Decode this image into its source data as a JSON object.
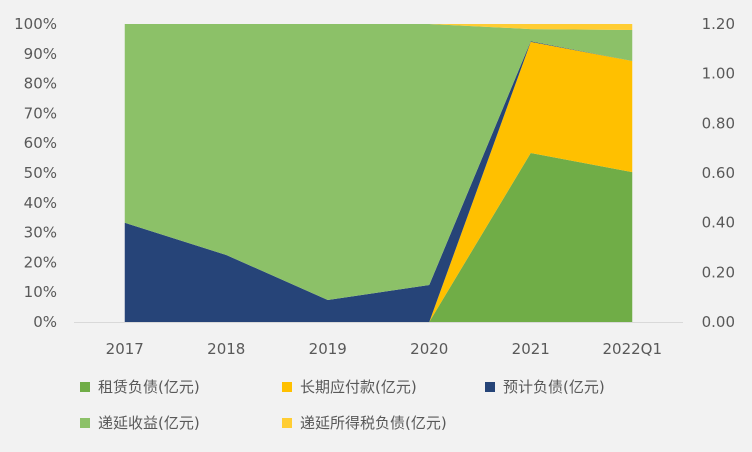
{
  "chart_data": {
    "type": "area",
    "stacking": "percent",
    "categories": [
      "2017",
      "2018",
      "2019",
      "2020",
      "2021",
      "2022Q1"
    ],
    "series": [
      {
        "name": "租赁负债(亿元)",
        "color": "#70ad47",
        "values": [
          0,
          0,
          0,
          0,
          56.7,
          50.3
        ]
      },
      {
        "name": "长期应付款(亿元)",
        "color": "#ffc000",
        "values": [
          0,
          0,
          0,
          0,
          37.3,
          37.3
        ]
      },
      {
        "name": "预计负债(亿元)",
        "color": "#264478",
        "values": [
          33.3,
          22.5,
          7.4,
          12.4,
          0.2,
          0
        ]
      },
      {
        "name": "递延收益(亿元)",
        "color": "#8cc168",
        "values": [
          66.7,
          77.5,
          92.6,
          87.6,
          4.1,
          10.4
        ]
      },
      {
        "name": "递延所得税负债(亿元)",
        "color": "#ffcd33",
        "values": [
          0,
          0,
          0,
          0,
          1.7,
          2.0
        ]
      }
    ],
    "y_left": {
      "range": [
        0,
        100
      ],
      "ticks": [
        "0%",
        "10%",
        "20%",
        "30%",
        "40%",
        "50%",
        "60%",
        "70%",
        "80%",
        "90%",
        "100%"
      ]
    },
    "y_right": {
      "range": [
        0,
        1.2
      ],
      "ticks": [
        "0.00",
        "0.20",
        "0.40",
        "0.60",
        "0.80",
        "1.00",
        "1.20"
      ]
    },
    "grid": false,
    "legend_placement": "bottom"
  }
}
